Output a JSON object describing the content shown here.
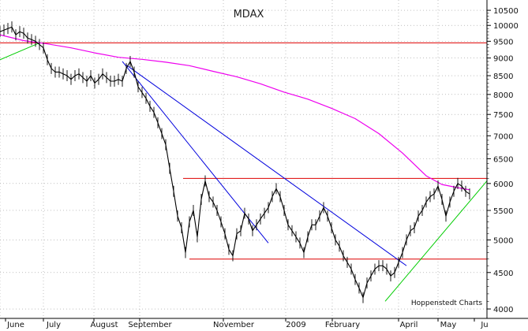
{
  "chart_data": {
    "type": "line",
    "title": "MDAX",
    "credit": "Hoppenstedt Charts",
    "y_scale": "log",
    "ylim": [
      3880,
      10800
    ],
    "y_ticks": [
      4000,
      4500,
      5000,
      5500,
      6000,
      6500,
      7000,
      7500,
      8000,
      8500,
      9000,
      9500,
      10000,
      10500
    ],
    "x_labels": [
      "June",
      "July",
      "August",
      "September",
      "November",
      "2009",
      "February",
      "April",
      "May",
      "Ju"
    ],
    "grid": true,
    "colors": {
      "price": "#000000",
      "moving_average": "#ee00ee",
      "horizontal_levels": "#dd0000",
      "downtrends": "#0000dd",
      "uptrends": "#00cc00",
      "grid": "#9a9a9a"
    },
    "series": [
      {
        "role": "price",
        "x": [
          0,
          5,
          10,
          15,
          20,
          25,
          30,
          35,
          40,
          45,
          50,
          55,
          60,
          65,
          70,
          75,
          80,
          85,
          90,
          95,
          100,
          105,
          110,
          115,
          120,
          125,
          130,
          135,
          140,
          145,
          150,
          155,
          160,
          165,
          170,
          175,
          180,
          185,
          190,
          195,
          200,
          205,
          210,
          215,
          220,
          225,
          230,
          235,
          240,
          245,
          250,
          255,
          260,
          265,
          270,
          275,
          280,
          285,
          290,
          295,
          300,
          305,
          310,
          315,
          320,
          325,
          330,
          335,
          340,
          345,
          350,
          355,
          360,
          365,
          370,
          375,
          380,
          385,
          390,
          395,
          400,
          405,
          410,
          415,
          420,
          425,
          430,
          435,
          440,
          445,
          450,
          455,
          460,
          465,
          470,
          475,
          480,
          485,
          490,
          495,
          500,
          505,
          510,
          515,
          520,
          525,
          530,
          535,
          540,
          545,
          550,
          555,
          560,
          565,
          570,
          575,
          580,
          585,
          590,
          595
        ],
        "y": [
          9800,
          9850,
          9900,
          9950,
          9700,
          9800,
          9750,
          9600,
          9550,
          9500,
          9400,
          9300,
          8950,
          8700,
          8600,
          8600,
          8550,
          8500,
          8400,
          8500,
          8550,
          8450,
          8350,
          8500,
          8300,
          8400,
          8550,
          8450,
          8350,
          8350,
          8400,
          8350,
          8700,
          8900,
          8600,
          8200,
          8050,
          7900,
          7700,
          7550,
          7300,
          7050,
          6800,
          6300,
          5850,
          5400,
          5200,
          4800,
          5300,
          5500,
          5050,
          5700,
          6050,
          5750,
          5650,
          5500,
          5300,
          5100,
          4850,
          4750,
          5100,
          5150,
          5450,
          5350,
          5150,
          5250,
          5350,
          5450,
          5550,
          5750,
          5900,
          5750,
          5500,
          5250,
          5150,
          5050,
          4950,
          4800,
          5050,
          5250,
          5250,
          5400,
          5550,
          5400,
          5200,
          5000,
          4900,
          4750,
          4650,
          4550,
          4400,
          4280,
          4150,
          4350,
          4450,
          4550,
          4600,
          4600,
          4550,
          4450,
          4500,
          4650,
          4800,
          5000,
          5150,
          5200,
          5400,
          5500,
          5650,
          5750,
          5800,
          5950,
          5700,
          5400,
          5650,
          5850,
          6000,
          5950,
          5850,
          5800
        ]
      },
      {
        "role": "moving_average",
        "x": [
          0,
          30,
          60,
          90,
          120,
          150,
          180,
          210,
          240,
          270,
          300,
          330,
          360,
          390,
          420,
          450,
          480,
          510,
          540,
          560,
          580,
          595
        ],
        "y": [
          9700,
          9520,
          9420,
          9300,
          9150,
          9020,
          8960,
          8880,
          8780,
          8620,
          8470,
          8280,
          8060,
          7880,
          7650,
          7400,
          7050,
          6620,
          6150,
          5980,
          5920,
          5880
        ]
      }
    ],
    "horizontal_levels": [
      9450,
      6100,
      4700
    ],
    "downtrend_lines": [
      {
        "from": [
          155,
          8900
        ],
        "to": [
          340,
          4950
        ]
      },
      {
        "from": [
          160,
          8800
        ],
        "to": [
          515,
          4600
        ]
      }
    ],
    "uptrend_lines": [
      {
        "from": [
          0,
          8950
        ],
        "to": [
          50,
          9450
        ]
      },
      {
        "from": [
          488,
          4100
        ],
        "to": [
          617,
          6050
        ]
      }
    ]
  }
}
